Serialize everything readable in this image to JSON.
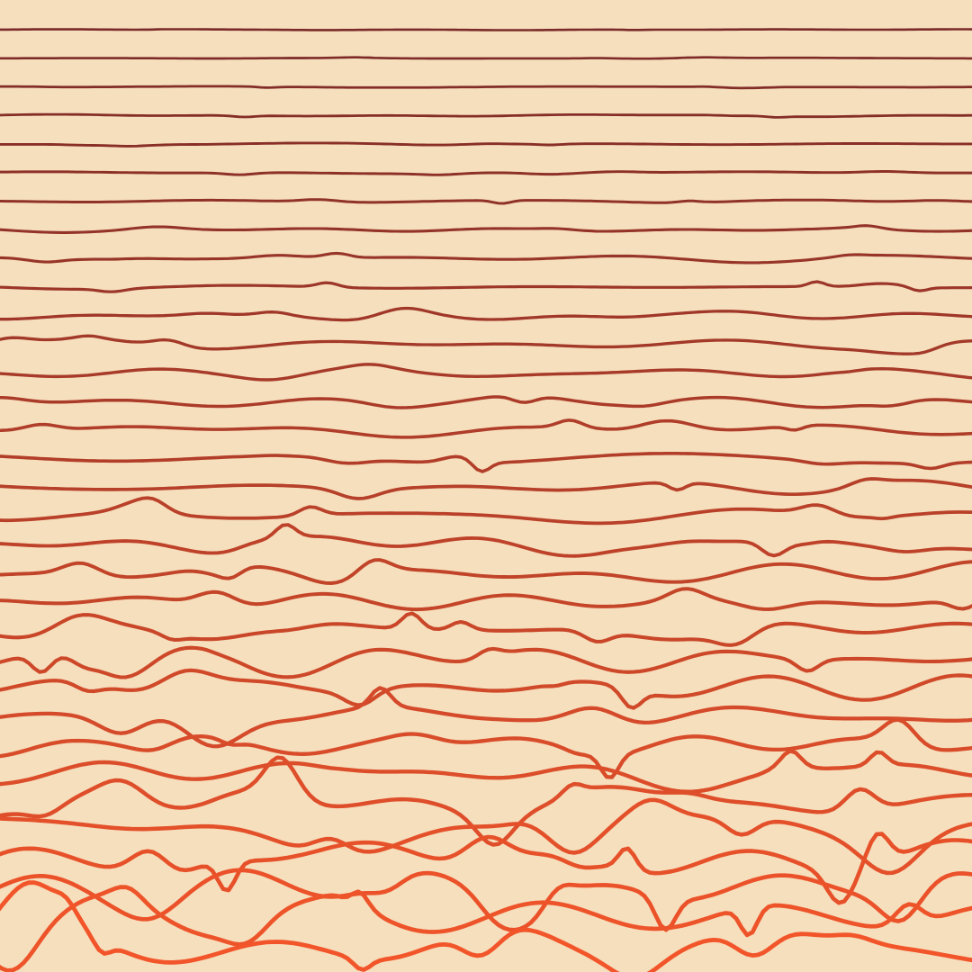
{
  "artwork": {
    "background_color": "#f6dfbd",
    "line_count": 33,
    "line_color_top": "#7a2a28",
    "line_color_bottom": "#f2552a",
    "style": "stacked wavy lines, amplitude increasing toward bottom"
  }
}
